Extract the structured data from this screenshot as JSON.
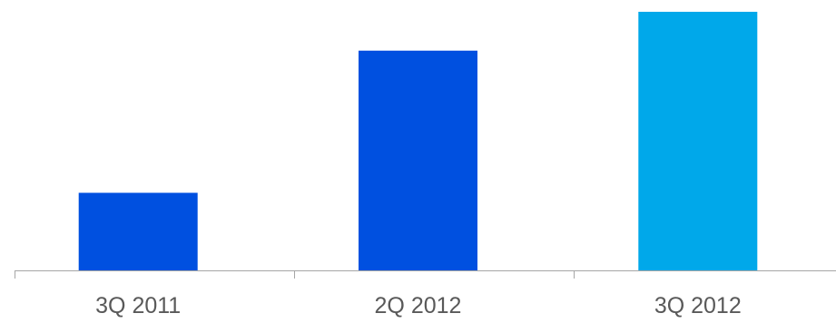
{
  "chart_data": {
    "type": "bar",
    "title": "",
    "xlabel": "",
    "ylabel": "",
    "categories": [
      "3Q 2011",
      "2Q 2012",
      "3Q 2012"
    ],
    "values": [
      30,
      85,
      100
    ],
    "ylim": [
      0,
      100
    ],
    "colors": [
      "#0050e0",
      "#0050e0",
      "#00a8ea"
    ],
    "axis_color": "#a6a6a6",
    "label_color": "#595959",
    "grid": false,
    "legend": "none"
  }
}
